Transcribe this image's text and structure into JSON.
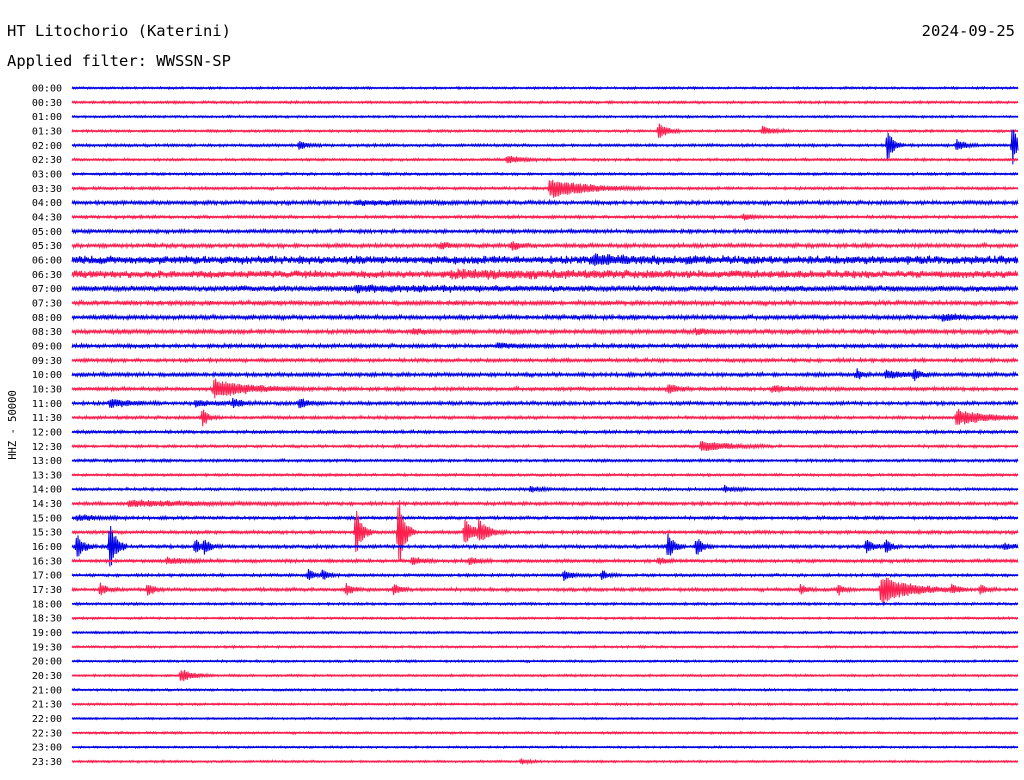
{
  "header": {
    "station": "HT Litochorio (Katerini)",
    "date": "2024-09-25",
    "filter": "Applied filter: WWSSN-SP"
  },
  "chart_data": {
    "type": "line",
    "title": "HT Litochorio (Katerini)",
    "subtitle": "Applied filter: WWSSN-SP",
    "ylabel": "HHZ - 50000",
    "xlabel": "",
    "colors": {
      "even": "#0000e6",
      "odd": "#ff1f4f"
    },
    "rows": [
      {
        "label": "00:00",
        "noise": 0.8,
        "events": []
      },
      {
        "label": "00:30",
        "noise": 0.9,
        "events": []
      },
      {
        "label": "01:00",
        "noise": 0.8,
        "events": []
      },
      {
        "label": "01:30",
        "noise": 0.9,
        "events": [
          {
            "t": 0.62,
            "amp": 8,
            "dur": 0.008
          },
          {
            "t": 0.73,
            "amp": 4,
            "dur": 0.01
          }
        ]
      },
      {
        "label": "02:00",
        "noise": 1.0,
        "events": [
          {
            "t": 0.24,
            "amp": 4,
            "dur": 0.008
          },
          {
            "t": 0.862,
            "amp": 16,
            "dur": 0.006
          },
          {
            "t": 0.935,
            "amp": 6,
            "dur": 0.008
          },
          {
            "t": 0.994,
            "amp": 20,
            "dur": 0.006
          }
        ]
      },
      {
        "label": "02:30",
        "noise": 0.9,
        "events": [
          {
            "t": 0.46,
            "amp": 4,
            "dur": 0.015
          }
        ]
      },
      {
        "label": "03:00",
        "noise": 0.9,
        "events": []
      },
      {
        "label": "03:30",
        "noise": 1.0,
        "events": [
          {
            "t": 0.505,
            "amp": 10,
            "dur": 0.035
          }
        ]
      },
      {
        "label": "04:00",
        "noise": 1.4,
        "events": [
          {
            "t": 0.3,
            "amp": 2,
            "dur": 0.05
          }
        ]
      },
      {
        "label": "04:30",
        "noise": 1.1,
        "events": [
          {
            "t": 0.71,
            "amp": 3,
            "dur": 0.008
          }
        ]
      },
      {
        "label": "05:00",
        "noise": 1.3,
        "events": []
      },
      {
        "label": "05:30",
        "noise": 1.5,
        "events": [
          {
            "t": 0.39,
            "amp": 3,
            "dur": 0.01
          },
          {
            "t": 0.465,
            "amp": 4,
            "dur": 0.008
          }
        ]
      },
      {
        "label": "06:00",
        "noise": 3.2,
        "events": [
          {
            "t": 0.55,
            "amp": 3,
            "dur": 0.05
          }
        ]
      },
      {
        "label": "06:30",
        "noise": 2.8,
        "events": [
          {
            "t": 0.4,
            "amp": 2,
            "dur": 0.15
          }
        ]
      },
      {
        "label": "07:00",
        "noise": 2.2,
        "events": [
          {
            "t": 0.3,
            "amp": 2,
            "dur": 0.1
          }
        ]
      },
      {
        "label": "07:30",
        "noise": 1.6,
        "events": []
      },
      {
        "label": "08:00",
        "noise": 1.6,
        "events": [
          {
            "t": 0.92,
            "amp": 3,
            "dur": 0.02
          }
        ]
      },
      {
        "label": "08:30",
        "noise": 1.6,
        "events": [
          {
            "t": 0.36,
            "amp": 3,
            "dur": 0.01
          },
          {
            "t": 0.66,
            "amp": 3,
            "dur": 0.01
          }
        ]
      },
      {
        "label": "09:00",
        "noise": 1.4,
        "events": [
          {
            "t": 0.45,
            "amp": 2,
            "dur": 0.02
          }
        ]
      },
      {
        "label": "09:30",
        "noise": 1.3,
        "events": []
      },
      {
        "label": "10:00",
        "noise": 1.4,
        "events": [
          {
            "t": 0.83,
            "amp": 5,
            "dur": 0.005
          },
          {
            "t": 0.86,
            "amp": 4,
            "dur": 0.02
          },
          {
            "t": 0.89,
            "amp": 5,
            "dur": 0.005
          }
        ]
      },
      {
        "label": "10:30",
        "noise": 1.3,
        "events": [
          {
            "t": 0.15,
            "amp": 9,
            "dur": 0.035
          },
          {
            "t": 0.63,
            "amp": 5,
            "dur": 0.01
          },
          {
            "t": 0.74,
            "amp": 3,
            "dur": 0.02
          }
        ]
      },
      {
        "label": "11:00",
        "noise": 1.3,
        "events": [
          {
            "t": 0.04,
            "amp": 4,
            "dur": 0.02
          },
          {
            "t": 0.13,
            "amp": 3,
            "dur": 0.02
          },
          {
            "t": 0.17,
            "amp": 4,
            "dur": 0.01
          },
          {
            "t": 0.24,
            "amp": 5,
            "dur": 0.01
          }
        ]
      },
      {
        "label": "11:30",
        "noise": 1.1,
        "events": [
          {
            "t": 0.138,
            "amp": 9,
            "dur": 0.006
          },
          {
            "t": 0.935,
            "amp": 8,
            "dur": 0.03
          }
        ]
      },
      {
        "label": "12:00",
        "noise": 1.1,
        "events": []
      },
      {
        "label": "12:30",
        "noise": 1.0,
        "events": [
          {
            "t": 0.665,
            "amp": 6,
            "dur": 0.025
          }
        ]
      },
      {
        "label": "13:00",
        "noise": 1.0,
        "events": []
      },
      {
        "label": "13:30",
        "noise": 0.9,
        "events": []
      },
      {
        "label": "14:00",
        "noise": 1.0,
        "events": [
          {
            "t": 0.485,
            "amp": 3,
            "dur": 0.01
          },
          {
            "t": 0.69,
            "amp": 3,
            "dur": 0.01
          }
        ]
      },
      {
        "label": "14:30",
        "noise": 1.2,
        "events": [
          {
            "t": 0.06,
            "amp": 3,
            "dur": 0.06
          }
        ]
      },
      {
        "label": "15:00",
        "noise": 1.1,
        "events": [
          {
            "t": 0.005,
            "amp": 3,
            "dur": 0.02
          }
        ]
      },
      {
        "label": "15:30",
        "noise": 1.2,
        "events": [
          {
            "t": 0.3,
            "amp": 24,
            "dur": 0.006
          },
          {
            "t": 0.345,
            "amp": 40,
            "dur": 0.006
          },
          {
            "t": 0.415,
            "amp": 12,
            "dur": 0.01
          },
          {
            "t": 0.43,
            "amp": 10,
            "dur": 0.01
          }
        ]
      },
      {
        "label": "16:00",
        "noise": 1.2,
        "events": [
          {
            "t": 0.005,
            "amp": 14,
            "dur": 0.006
          },
          {
            "t": 0.04,
            "amp": 28,
            "dur": 0.006
          },
          {
            "t": 0.13,
            "amp": 8,
            "dur": 0.006
          },
          {
            "t": 0.14,
            "amp": 6,
            "dur": 0.006
          },
          {
            "t": 0.63,
            "amp": 14,
            "dur": 0.006
          },
          {
            "t": 0.66,
            "amp": 10,
            "dur": 0.006
          },
          {
            "t": 0.84,
            "amp": 8,
            "dur": 0.006
          },
          {
            "t": 0.86,
            "amp": 8,
            "dur": 0.006
          },
          {
            "t": 0.985,
            "amp": 3,
            "dur": 0.01
          }
        ]
      },
      {
        "label": "16:30",
        "noise": 1.2,
        "events": [
          {
            "t": 0.1,
            "amp": 3,
            "dur": 0.02
          },
          {
            "t": 0.36,
            "amp": 5,
            "dur": 0.008
          },
          {
            "t": 0.42,
            "amp": 4,
            "dur": 0.008
          },
          {
            "t": 0.62,
            "amp": 3,
            "dur": 0.008
          }
        ]
      },
      {
        "label": "17:00",
        "noise": 1.0,
        "events": [
          {
            "t": 0.25,
            "amp": 6,
            "dur": 0.006
          },
          {
            "t": 0.265,
            "amp": 5,
            "dur": 0.006
          },
          {
            "t": 0.52,
            "amp": 5,
            "dur": 0.01
          },
          {
            "t": 0.56,
            "amp": 5,
            "dur": 0.006
          }
        ]
      },
      {
        "label": "17:30",
        "noise": 1.2,
        "events": [
          {
            "t": 0.03,
            "amp": 7,
            "dur": 0.006
          },
          {
            "t": 0.08,
            "amp": 7,
            "dur": 0.006
          },
          {
            "t": 0.29,
            "amp": 6,
            "dur": 0.006
          },
          {
            "t": 0.34,
            "amp": 6,
            "dur": 0.006
          },
          {
            "t": 0.77,
            "amp": 5,
            "dur": 0.006
          },
          {
            "t": 0.81,
            "amp": 6,
            "dur": 0.006
          },
          {
            "t": 0.855,
            "amp": 14,
            "dur": 0.03
          },
          {
            "t": 0.93,
            "amp": 4,
            "dur": 0.006
          },
          {
            "t": 0.96,
            "amp": 5,
            "dur": 0.006
          }
        ]
      },
      {
        "label": "18:00",
        "noise": 0.9,
        "events": []
      },
      {
        "label": "18:30",
        "noise": 0.8,
        "events": []
      },
      {
        "label": "19:00",
        "noise": 0.8,
        "events": []
      },
      {
        "label": "19:30",
        "noise": 0.8,
        "events": []
      },
      {
        "label": "20:00",
        "noise": 0.8,
        "events": []
      },
      {
        "label": "20:30",
        "noise": 0.8,
        "events": [
          {
            "t": 0.115,
            "amp": 7,
            "dur": 0.012
          }
        ]
      },
      {
        "label": "21:00",
        "noise": 0.8,
        "events": []
      },
      {
        "label": "21:30",
        "noise": 0.8,
        "events": []
      },
      {
        "label": "22:00",
        "noise": 0.7,
        "events": []
      },
      {
        "label": "22:30",
        "noise": 0.8,
        "events": []
      },
      {
        "label": "23:00",
        "noise": 0.7,
        "events": []
      },
      {
        "label": "23:30",
        "noise": 0.8,
        "events": [
          {
            "t": 0.475,
            "amp": 3,
            "dur": 0.006
          }
        ]
      }
    ]
  }
}
